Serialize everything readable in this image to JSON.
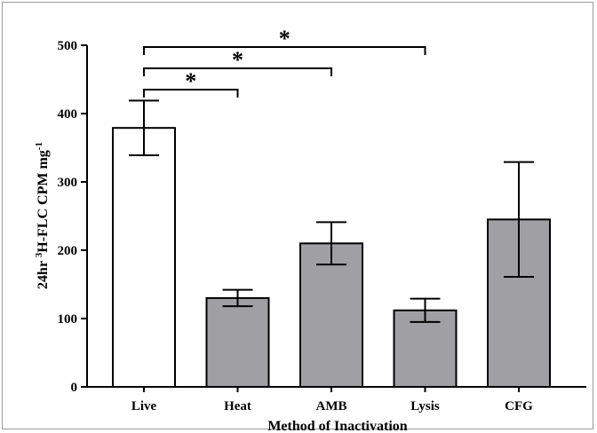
{
  "chart_data": {
    "type": "bar",
    "title": "",
    "xlabel": "Method of Inactivation",
    "ylabel": {
      "prefix": "24hr ",
      "sup1": "3",
      "mid": "H-FLC CPM mg",
      "sup2": "-1"
    },
    "categories": [
      "Live",
      "Heat",
      "AMB",
      "Lysis",
      "CFG"
    ],
    "values": [
      379,
      130,
      210,
      112,
      245
    ],
    "errors": [
      40,
      12,
      31,
      17,
      84
    ],
    "bar_colors": [
      "#ffffff",
      "#a09fa4",
      "#a09fa4",
      "#a09fa4",
      "#a09fa4"
    ],
    "ylim": [
      0,
      500
    ],
    "yticks": [
      0,
      100,
      200,
      300,
      400,
      500
    ],
    "grid": false,
    "significance": [
      {
        "from": "Live",
        "to": "Heat",
        "label": "*"
      },
      {
        "from": "Live",
        "to": "AMB",
        "label": "*"
      },
      {
        "from": "Live",
        "to": "Lysis",
        "label": "*"
      }
    ]
  }
}
